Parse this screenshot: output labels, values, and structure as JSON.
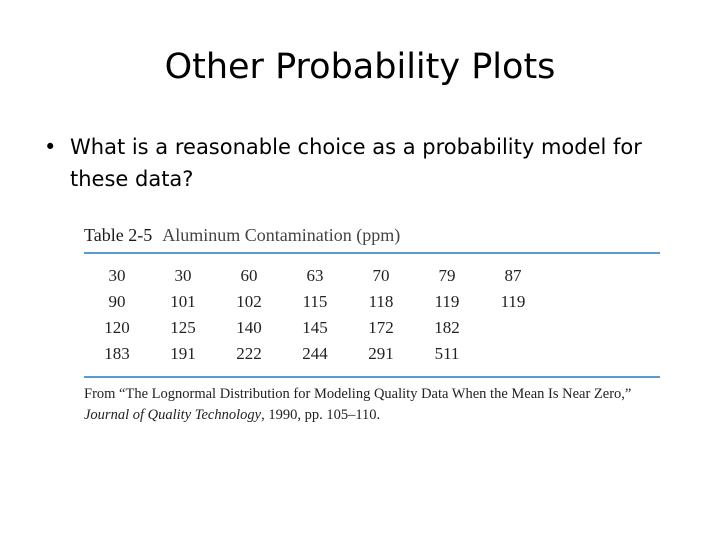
{
  "title": "Other Probability Plots",
  "bullet": {
    "mark": "•",
    "text": "What is a reasonable choice as a probability model for these data?"
  },
  "table": {
    "label": "Table 2-5",
    "caption": "Aluminum Contamination (ppm)",
    "rows": [
      [
        "30",
        "30",
        "60",
        "63",
        "70",
        "79",
        "87"
      ],
      [
        "90",
        "101",
        "102",
        "115",
        "118",
        "119",
        "119"
      ],
      [
        "120",
        "125",
        "140",
        "145",
        "172",
        "182",
        ""
      ],
      [
        "183",
        "191",
        "222",
        "244",
        "291",
        "511",
        ""
      ]
    ],
    "source": {
      "prefix": "From “The Lognormal Distribution for Modeling Quality Data When the Mean Is Near Zero,”",
      "journal": "Journal of Quality Technology",
      "suffix": ", 1990, pp. 105–110."
    }
  },
  "colors": {
    "rule": "#5a9bd5"
  }
}
